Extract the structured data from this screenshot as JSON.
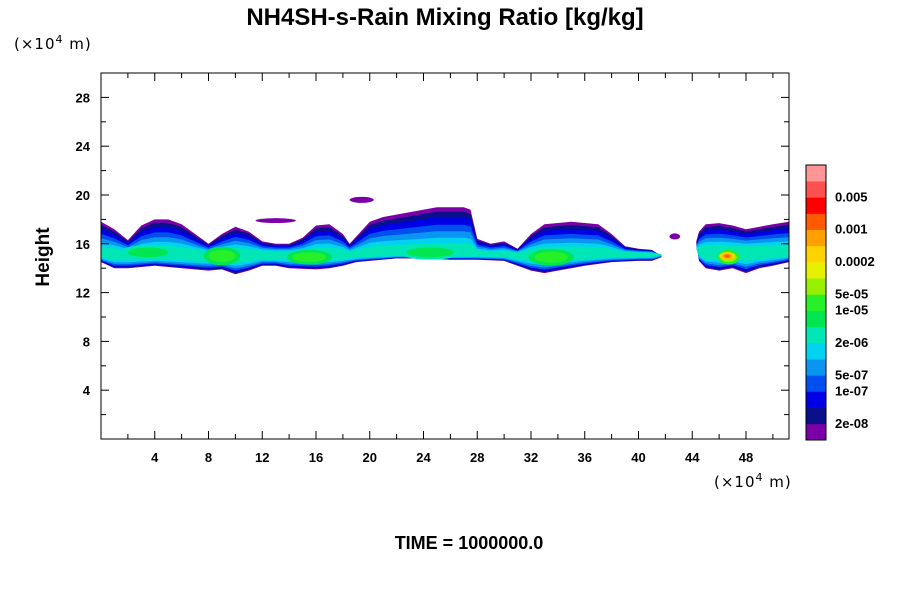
{
  "chart_data": {
    "type": "heatmap",
    "title": "NH4SH-s-Rain Mixing Ratio [kg/kg]",
    "ylabel": "Height",
    "x_unit": {
      "prefix": "(×10",
      "exp": "4",
      "suffix": " m)"
    },
    "y_unit": {
      "prefix": "(×10",
      "exp": "4",
      "suffix": " m)"
    },
    "xlim": [
      0,
      51.2
    ],
    "ylim": [
      0,
      30
    ],
    "x_ticks": [
      4,
      8,
      12,
      16,
      20,
      24,
      28,
      32,
      36,
      40,
      44,
      48
    ],
    "y_ticks": [
      4,
      8,
      12,
      16,
      20,
      24,
      28
    ],
    "time_label": "TIME = 1000000.0",
    "colorbar": {
      "colors": [
        "#7b00a8",
        "#0a0f8c",
        "#0000e6",
        "#0050f0",
        "#0a96f0",
        "#00d2f0",
        "#00e6b4",
        "#00e650",
        "#28f028",
        "#96f000",
        "#e6f000",
        "#ffd200",
        "#ffa000",
        "#ff5a00",
        "#ff0000",
        "#ff5050",
        "#ff9696"
      ],
      "labels": [
        {
          "level": 1,
          "text": "2e-08"
        },
        {
          "level": 3,
          "text": "1e-07"
        },
        {
          "level": 4,
          "text": "5e-07"
        },
        {
          "level": 6,
          "text": "2e-06"
        },
        {
          "level": 8,
          "text": "1e-05"
        },
        {
          "level": 9,
          "text": "5e-05"
        },
        {
          "level": 11,
          "text": "0.0002"
        },
        {
          "level": 13,
          "text": "0.001"
        },
        {
          "level": 15,
          "text": "0.005"
        }
      ]
    },
    "cloud_band": {
      "main_base_km": [
        [
          0,
          14.5
        ],
        [
          1,
          14.0
        ],
        [
          2,
          14.0
        ],
        [
          4,
          14.2
        ],
        [
          6,
          14.0
        ],
        [
          8,
          13.8
        ],
        [
          9,
          13.9
        ],
        [
          10,
          13.5
        ],
        [
          11,
          13.8
        ],
        [
          12,
          14.2
        ],
        [
          13,
          14.2
        ],
        [
          14,
          14.0
        ],
        [
          16,
          13.9
        ],
        [
          17,
          14.0
        ],
        [
          18,
          14.2
        ],
        [
          19,
          14.5
        ],
        [
          20,
          14.6
        ],
        [
          22,
          14.8
        ],
        [
          24,
          14.8
        ],
        [
          26,
          14.7
        ],
        [
          28,
          14.7
        ],
        [
          30,
          14.6
        ],
        [
          31,
          14.2
        ],
        [
          32,
          13.8
        ],
        [
          33,
          13.6
        ],
        [
          34,
          13.8
        ],
        [
          35,
          14.0
        ],
        [
          36,
          14.2
        ],
        [
          38,
          14.5
        ],
        [
          40,
          14.6
        ],
        [
          41,
          14.6
        ],
        [
          41.7,
          14.9
        ]
      ],
      "main_top_km": [
        [
          41.7,
          15.0
        ],
        [
          41,
          15.5
        ],
        [
          40,
          15.6
        ],
        [
          39,
          15.8
        ],
        [
          38,
          16.8
        ],
        [
          37,
          17.6
        ],
        [
          35,
          17.8
        ],
        [
          33,
          17.6
        ],
        [
          32,
          16.8
        ],
        [
          31,
          15.6
        ],
        [
          30,
          16.2
        ],
        [
          29,
          16.0
        ],
        [
          28,
          16.4
        ],
        [
          27.5,
          18.8
        ],
        [
          27,
          19.0
        ],
        [
          25,
          19.0
        ],
        [
          23,
          18.6
        ],
        [
          21,
          18.2
        ],
        [
          20,
          17.8
        ],
        [
          19,
          16.6
        ],
        [
          18.5,
          16.0
        ],
        [
          18,
          16.8
        ],
        [
          17,
          17.6
        ],
        [
          16,
          17.5
        ],
        [
          15,
          16.5
        ],
        [
          14,
          16.0
        ],
        [
          13,
          16.0
        ],
        [
          12,
          16.2
        ],
        [
          11,
          17.0
        ],
        [
          10,
          17.4
        ],
        [
          9,
          16.8
        ],
        [
          8,
          16.0
        ],
        [
          7,
          16.8
        ],
        [
          6,
          17.6
        ],
        [
          5,
          18.0
        ],
        [
          4,
          18.0
        ],
        [
          3,
          17.5
        ],
        [
          2,
          16.3
        ],
        [
          1,
          17.2
        ],
        [
          0,
          17.8
        ]
      ],
      "right_base_km": [
        [
          44.5,
          14.6
        ],
        [
          45,
          14.0
        ],
        [
          46,
          13.8
        ],
        [
          47,
          14.0
        ],
        [
          48,
          13.6
        ],
        [
          49,
          14.0
        ],
        [
          50,
          14.2
        ],
        [
          51.2,
          14.5
        ]
      ],
      "right_top_km": [
        [
          51.2,
          17.8
        ],
        [
          50,
          17.6
        ],
        [
          48,
          17.2
        ],
        [
          47,
          17.5
        ],
        [
          46,
          17.7
        ],
        [
          45,
          17.6
        ],
        [
          44.5,
          17.0
        ],
        [
          44.3,
          16.2
        ]
      ],
      "wisps": [
        {
          "x": 11.5,
          "y": 17.9,
          "w": 3.0,
          "h": 0.4,
          "level": 0
        },
        {
          "x": 18.5,
          "y": 19.6,
          "w": 1.8,
          "h": 0.5,
          "level": 0
        },
        {
          "x": 42.3,
          "y": 16.6,
          "w": 0.8,
          "h": 0.5,
          "level": 0
        }
      ],
      "core_blobs": [
        {
          "x": 3.5,
          "y": 15.3,
          "w": 3.0,
          "h": 0.8,
          "level": 7
        },
        {
          "x": 9.0,
          "y": 15.0,
          "w": 2.0,
          "h": 1.0,
          "level": 8
        },
        {
          "x": 15.5,
          "y": 14.9,
          "w": 2.5,
          "h": 0.8,
          "level": 8
        },
        {
          "x": 24.5,
          "y": 15.3,
          "w": 3.5,
          "h": 0.8,
          "level": 7
        },
        {
          "x": 33.5,
          "y": 14.9,
          "w": 2.5,
          "h": 0.9,
          "level": 8
        },
        {
          "x": 46.7,
          "y": 14.9,
          "w": 1.2,
          "h": 0.8,
          "level": 9
        }
      ],
      "hot_spot": {
        "x": 46.6,
        "y": 15.0,
        "w": 0.9,
        "h": 0.5
      }
    }
  }
}
